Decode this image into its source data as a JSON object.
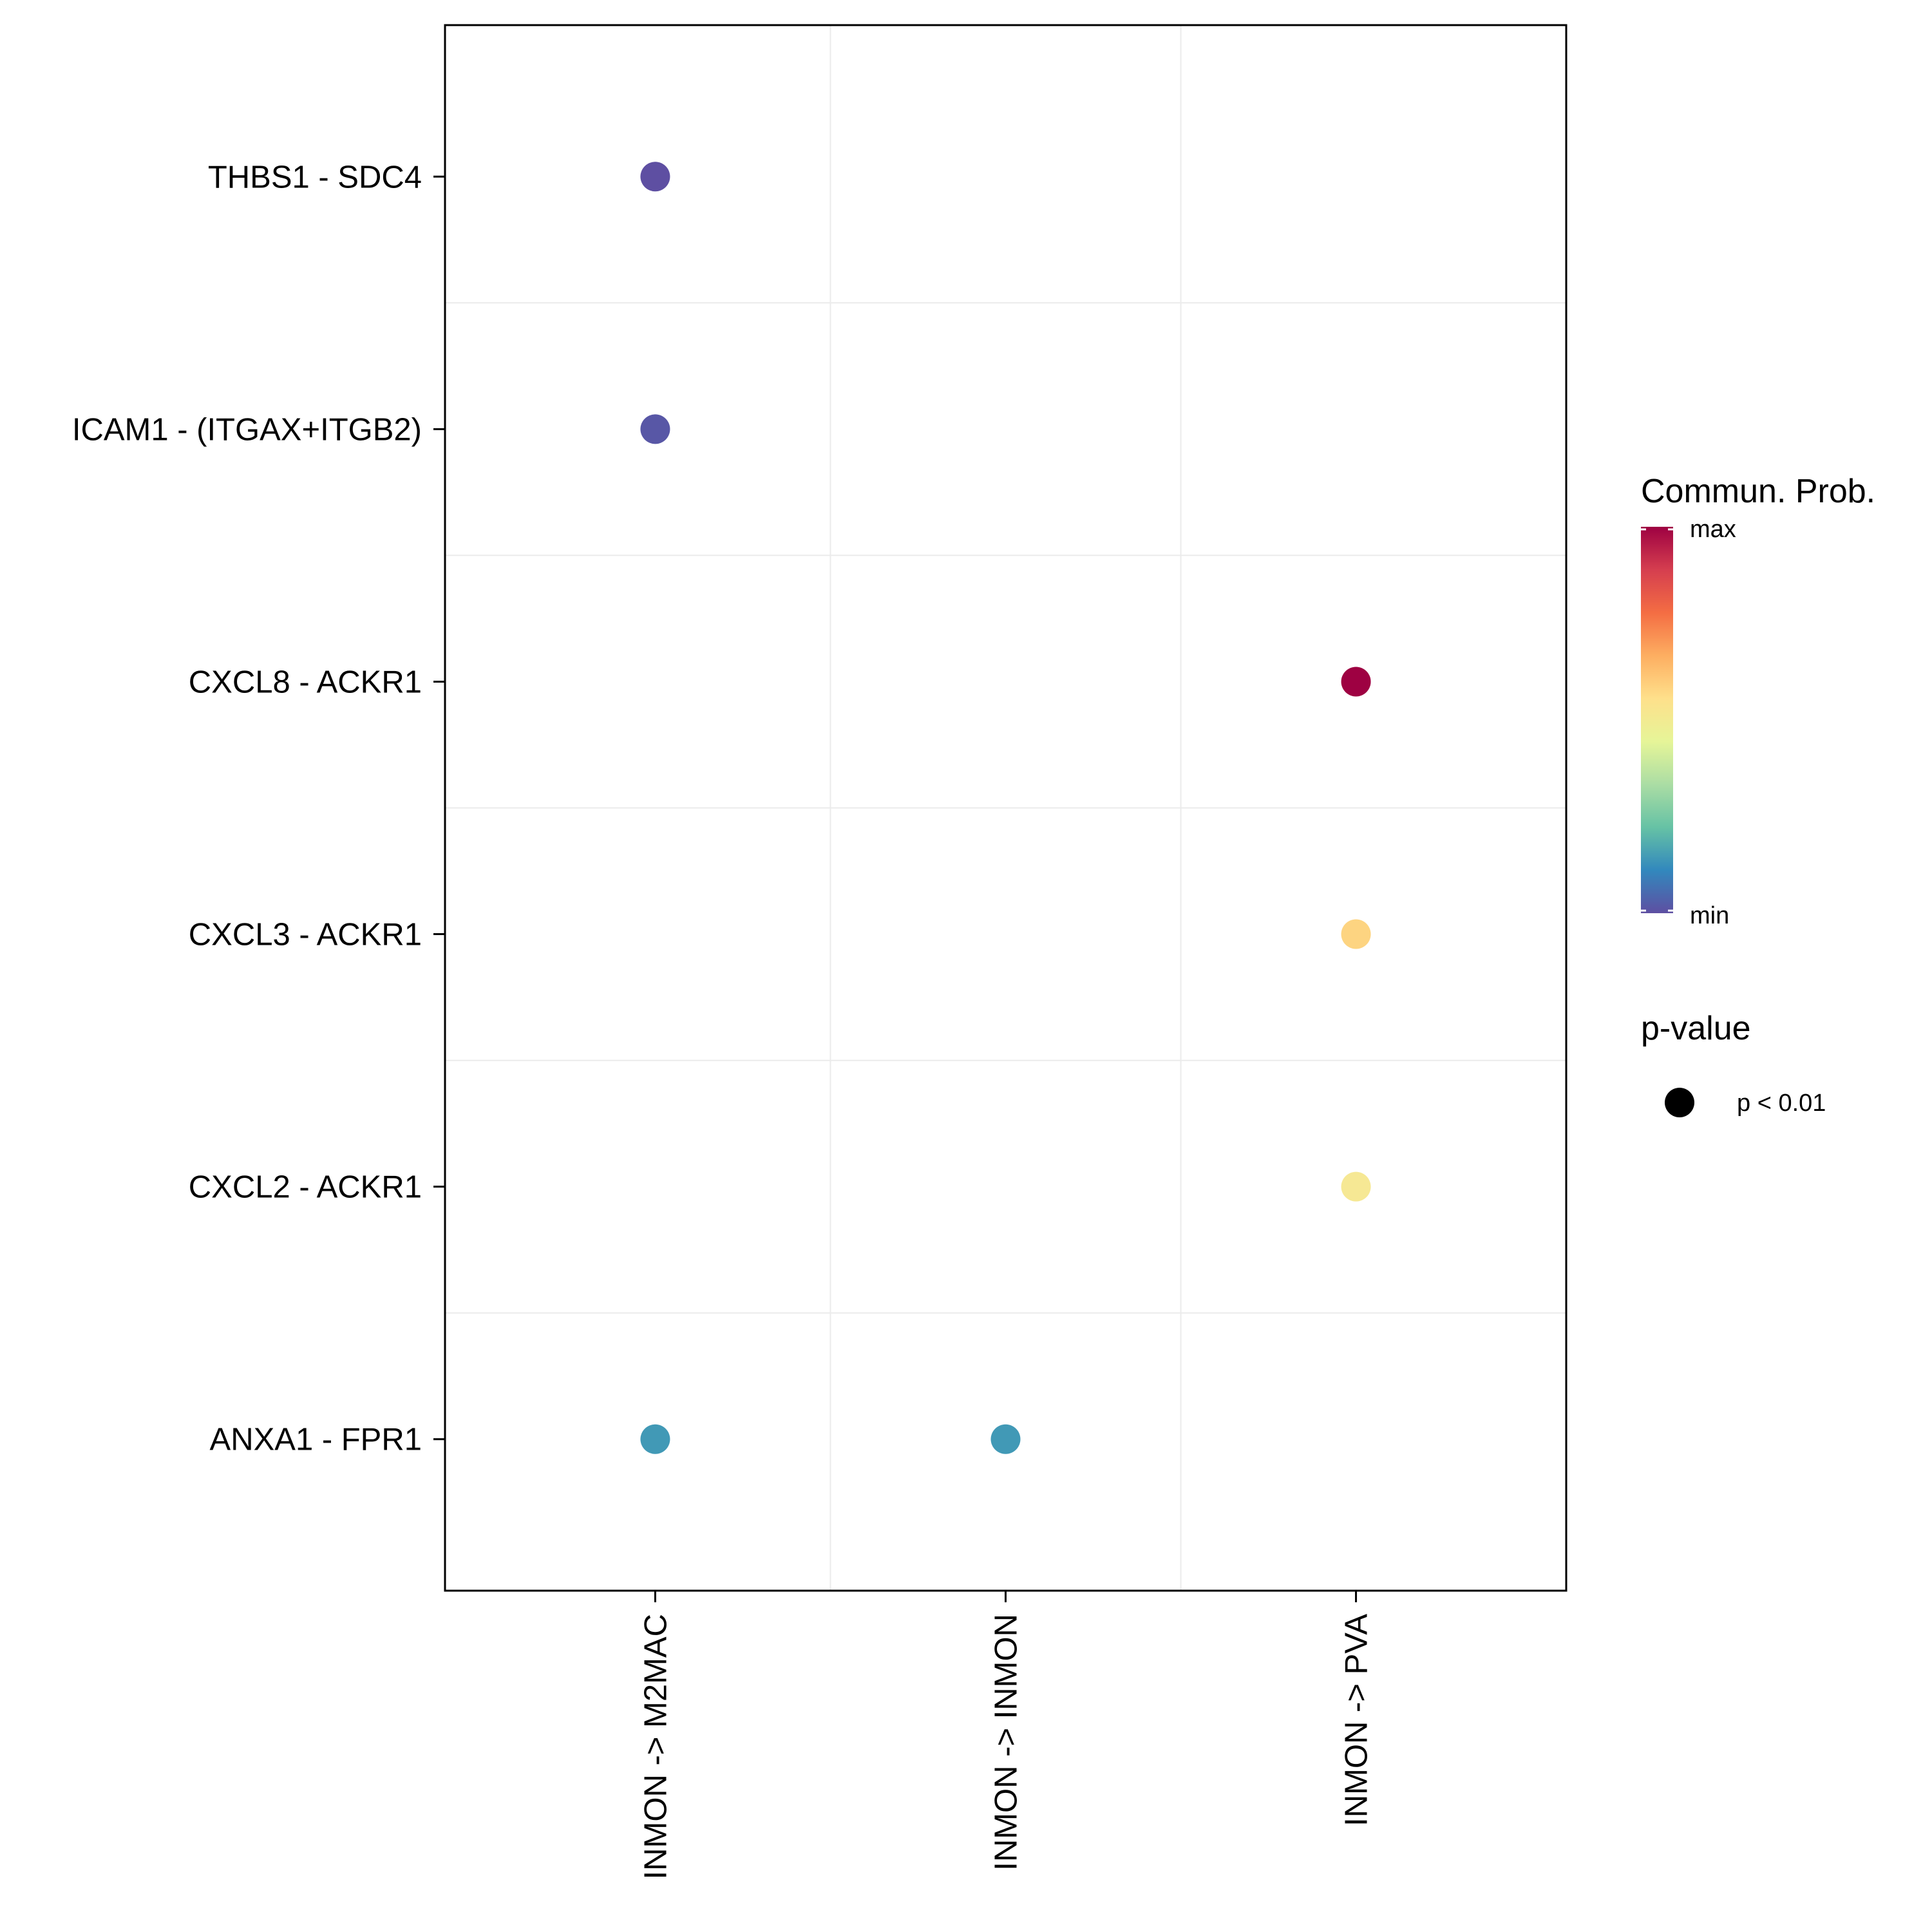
{
  "chart_data": {
    "type": "scatter",
    "subtype": "dot-plot",
    "title": "",
    "xlabel": "",
    "ylabel": "",
    "x_categories": [
      "INMON -> M2MAC",
      "INMON -> INMON",
      "INMON -> PVA"
    ],
    "y_categories": [
      "THBS1 - SDC4",
      "ICAM1 - (ITGAX+ITGB2)",
      "CXCL8 - ACKR1",
      "CXCL3 - ACKR1",
      "CXCL2 - ACKR1",
      "ANXA1 - FPR1"
    ],
    "points": [
      {
        "x": "INMON -> M2MAC",
        "y": "THBS1 - SDC4",
        "prob": 0.0,
        "color": "#5E4FA2",
        "pvalue": "p < 0.01"
      },
      {
        "x": "INMON -> M2MAC",
        "y": "ICAM1 - (ITGAX+ITGB2)",
        "prob": 0.02,
        "color": "#5857A6",
        "pvalue": "p < 0.01"
      },
      {
        "x": "INMON -> PVA",
        "y": "CXCL8 - ACKR1",
        "prob": 1.0,
        "color": "#9E0142",
        "pvalue": "p < 0.01"
      },
      {
        "x": "INMON -> PVA",
        "y": "CXCL3 - ACKR1",
        "prob": 0.55,
        "color": "#FDD481",
        "pvalue": "p < 0.01"
      },
      {
        "x": "INMON -> PVA",
        "y": "CXCL2 - ACKR1",
        "prob": 0.5,
        "color": "#F6E894",
        "pvalue": "p < 0.01"
      },
      {
        "x": "INMON -> M2MAC",
        "y": "ANXA1 - FPR1",
        "prob": 0.12,
        "color": "#4199B6",
        "pvalue": "p < 0.01"
      },
      {
        "x": "INMON -> INMON",
        "y": "ANXA1 - FPR1",
        "prob": 0.12,
        "color": "#4199B6",
        "pvalue": "p < 0.01"
      }
    ],
    "grid": true,
    "legend": {
      "color_title": "Commun. Prob.",
      "color_max_label": "max",
      "color_min_label": "min",
      "colormap": [
        "#5E4FA2",
        "#3288BD",
        "#66C2A5",
        "#ABDDA4",
        "#E6F598",
        "#FEE08B",
        "#FDAE61",
        "#F46D43",
        "#D53E4F",
        "#9E0142"
      ],
      "size_title": "p-value",
      "size_label": "p < 0.01",
      "size_color": "#000000",
      "placement": "right"
    }
  }
}
